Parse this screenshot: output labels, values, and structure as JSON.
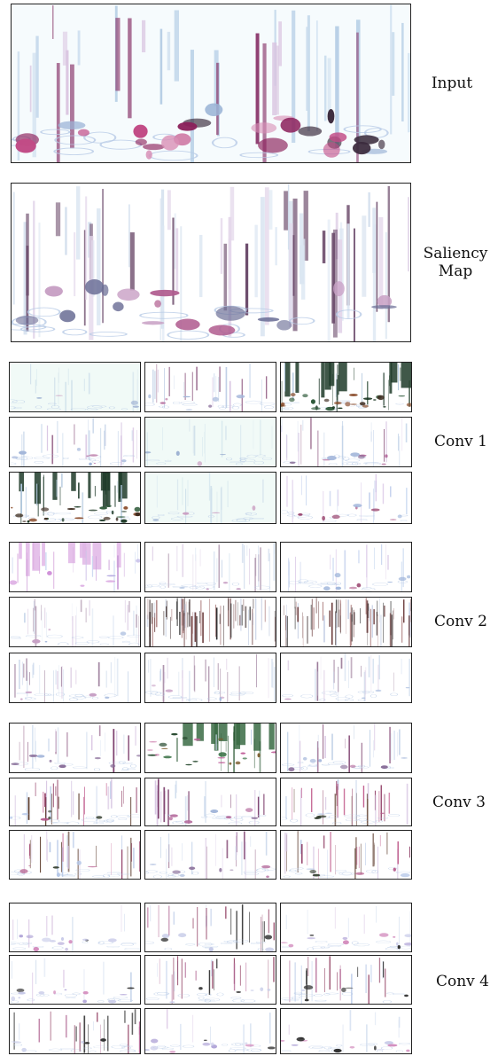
{
  "figure": {
    "rows": [
      {
        "label": "Input",
        "grid": [
          1,
          1
        ]
      },
      {
        "label": "Saliency\nMap",
        "grid": [
          1,
          1
        ]
      },
      {
        "label": "Conv 1",
        "grid": [
          3,
          3
        ]
      },
      {
        "label": "Conv 2",
        "grid": [
          3,
          3
        ]
      },
      {
        "label": "Conv 3",
        "grid": [
          3,
          3
        ]
      },
      {
        "label": "Conv 4",
        "grid": [
          3,
          3
        ]
      }
    ]
  }
}
